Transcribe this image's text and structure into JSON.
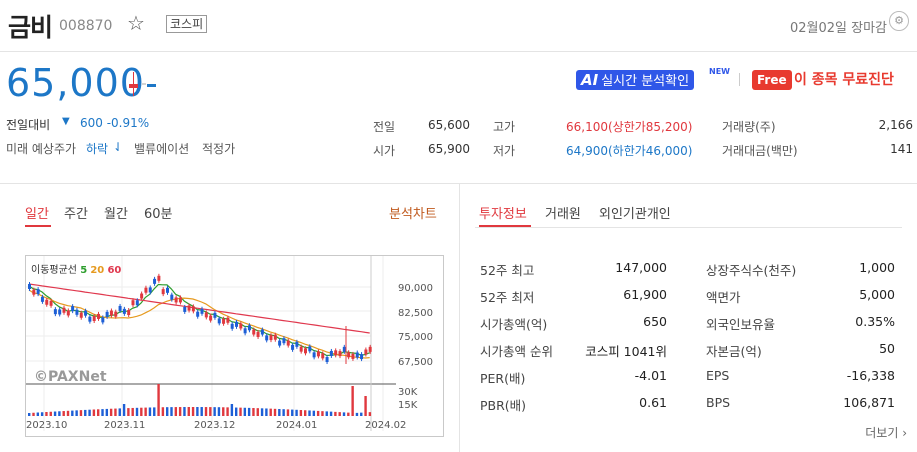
{
  "header": {
    "name": "금비",
    "code": "008870",
    "market_badge": "코스피",
    "date_status": "02월02일 장마감",
    "star_icon": "star-outline-icon",
    "settings_icon": "gear-icon"
  },
  "price": {
    "current": "65,000",
    "change_label": "전일대비",
    "change_arrow": "▼",
    "change_value": "600 -0.91%",
    "forecast_label": "미래 예상주가",
    "forecast_value": "하락",
    "forecast_arrow": "⇃",
    "valuation_label": "밸류에이션",
    "valuation_value": "적정가"
  },
  "actions": {
    "ai_prefix": "AI",
    "ai_label": "실시간 분석확인",
    "new_tag": "NEW",
    "free_tag": "Free",
    "free_label": "이 종목 무료진단"
  },
  "quote_grid": {
    "prev_label": "전일",
    "prev_value": "65,600",
    "open_label": "시가",
    "open_value": "65,900",
    "high_label": "고가",
    "high_value": "66,100(상한가85,200)",
    "low_label": "저가",
    "low_value": "64,900(하한가46,000)",
    "volume_label": "거래량(주)",
    "volume_value": "2,166",
    "amount_label": "거래대금(백만)",
    "amount_value": "141"
  },
  "chart_tabs": [
    "일간",
    "주간",
    "월간",
    "60분"
  ],
  "chart_link": "분석차트",
  "info_tabs": [
    "투자정보",
    "거래원",
    "외인기관개인"
  ],
  "chart": {
    "ma_label": "이동평균선",
    "ma5": "5",
    "ma20": "20",
    "ma60": "60",
    "watermark": "©PAXNet",
    "colors": {
      "ma5": "#2e9e2e",
      "ma20": "#e69a1f",
      "ma60": "#e0384e",
      "up": "#e0383e",
      "down": "#1d5fd6"
    }
  },
  "chart_data": {
    "type": "candlestick",
    "y_ticks": [
      "90,000",
      "82,500",
      "75,000",
      "67,500"
    ],
    "volume_ticks": [
      "30K",
      "15K"
    ],
    "x_ticks": [
      "2023.10",
      "2023.11",
      "2023.12",
      "2024.01",
      "2024.02"
    ],
    "ylim": [
      62000,
      100000
    ],
    "ma_series": [
      "5",
      "20",
      "60"
    ]
  },
  "invest": {
    "left": [
      {
        "k": "52주 최고",
        "v": "147,000"
      },
      {
        "k": "52주 최저",
        "v": "61,900"
      },
      {
        "k": "시가총액(억)",
        "v": "650"
      },
      {
        "k": "시가총액 순위",
        "v": "코스피 1041위"
      },
      {
        "k": "PER(배)",
        "v": "-4.01"
      },
      {
        "k": "PBR(배)",
        "v": "0.61"
      }
    ],
    "right": [
      {
        "k": "상장주식수(천주)",
        "v": "1,000"
      },
      {
        "k": "액면가",
        "v": "5,000"
      },
      {
        "k": "외국인보유율",
        "v": "0.35%"
      },
      {
        "k": "자본금(억)",
        "v": "50"
      },
      {
        "k": "EPS",
        "v": "-16,338"
      },
      {
        "k": "BPS",
        "v": "106,871"
      }
    ],
    "more_label": "더보기"
  }
}
